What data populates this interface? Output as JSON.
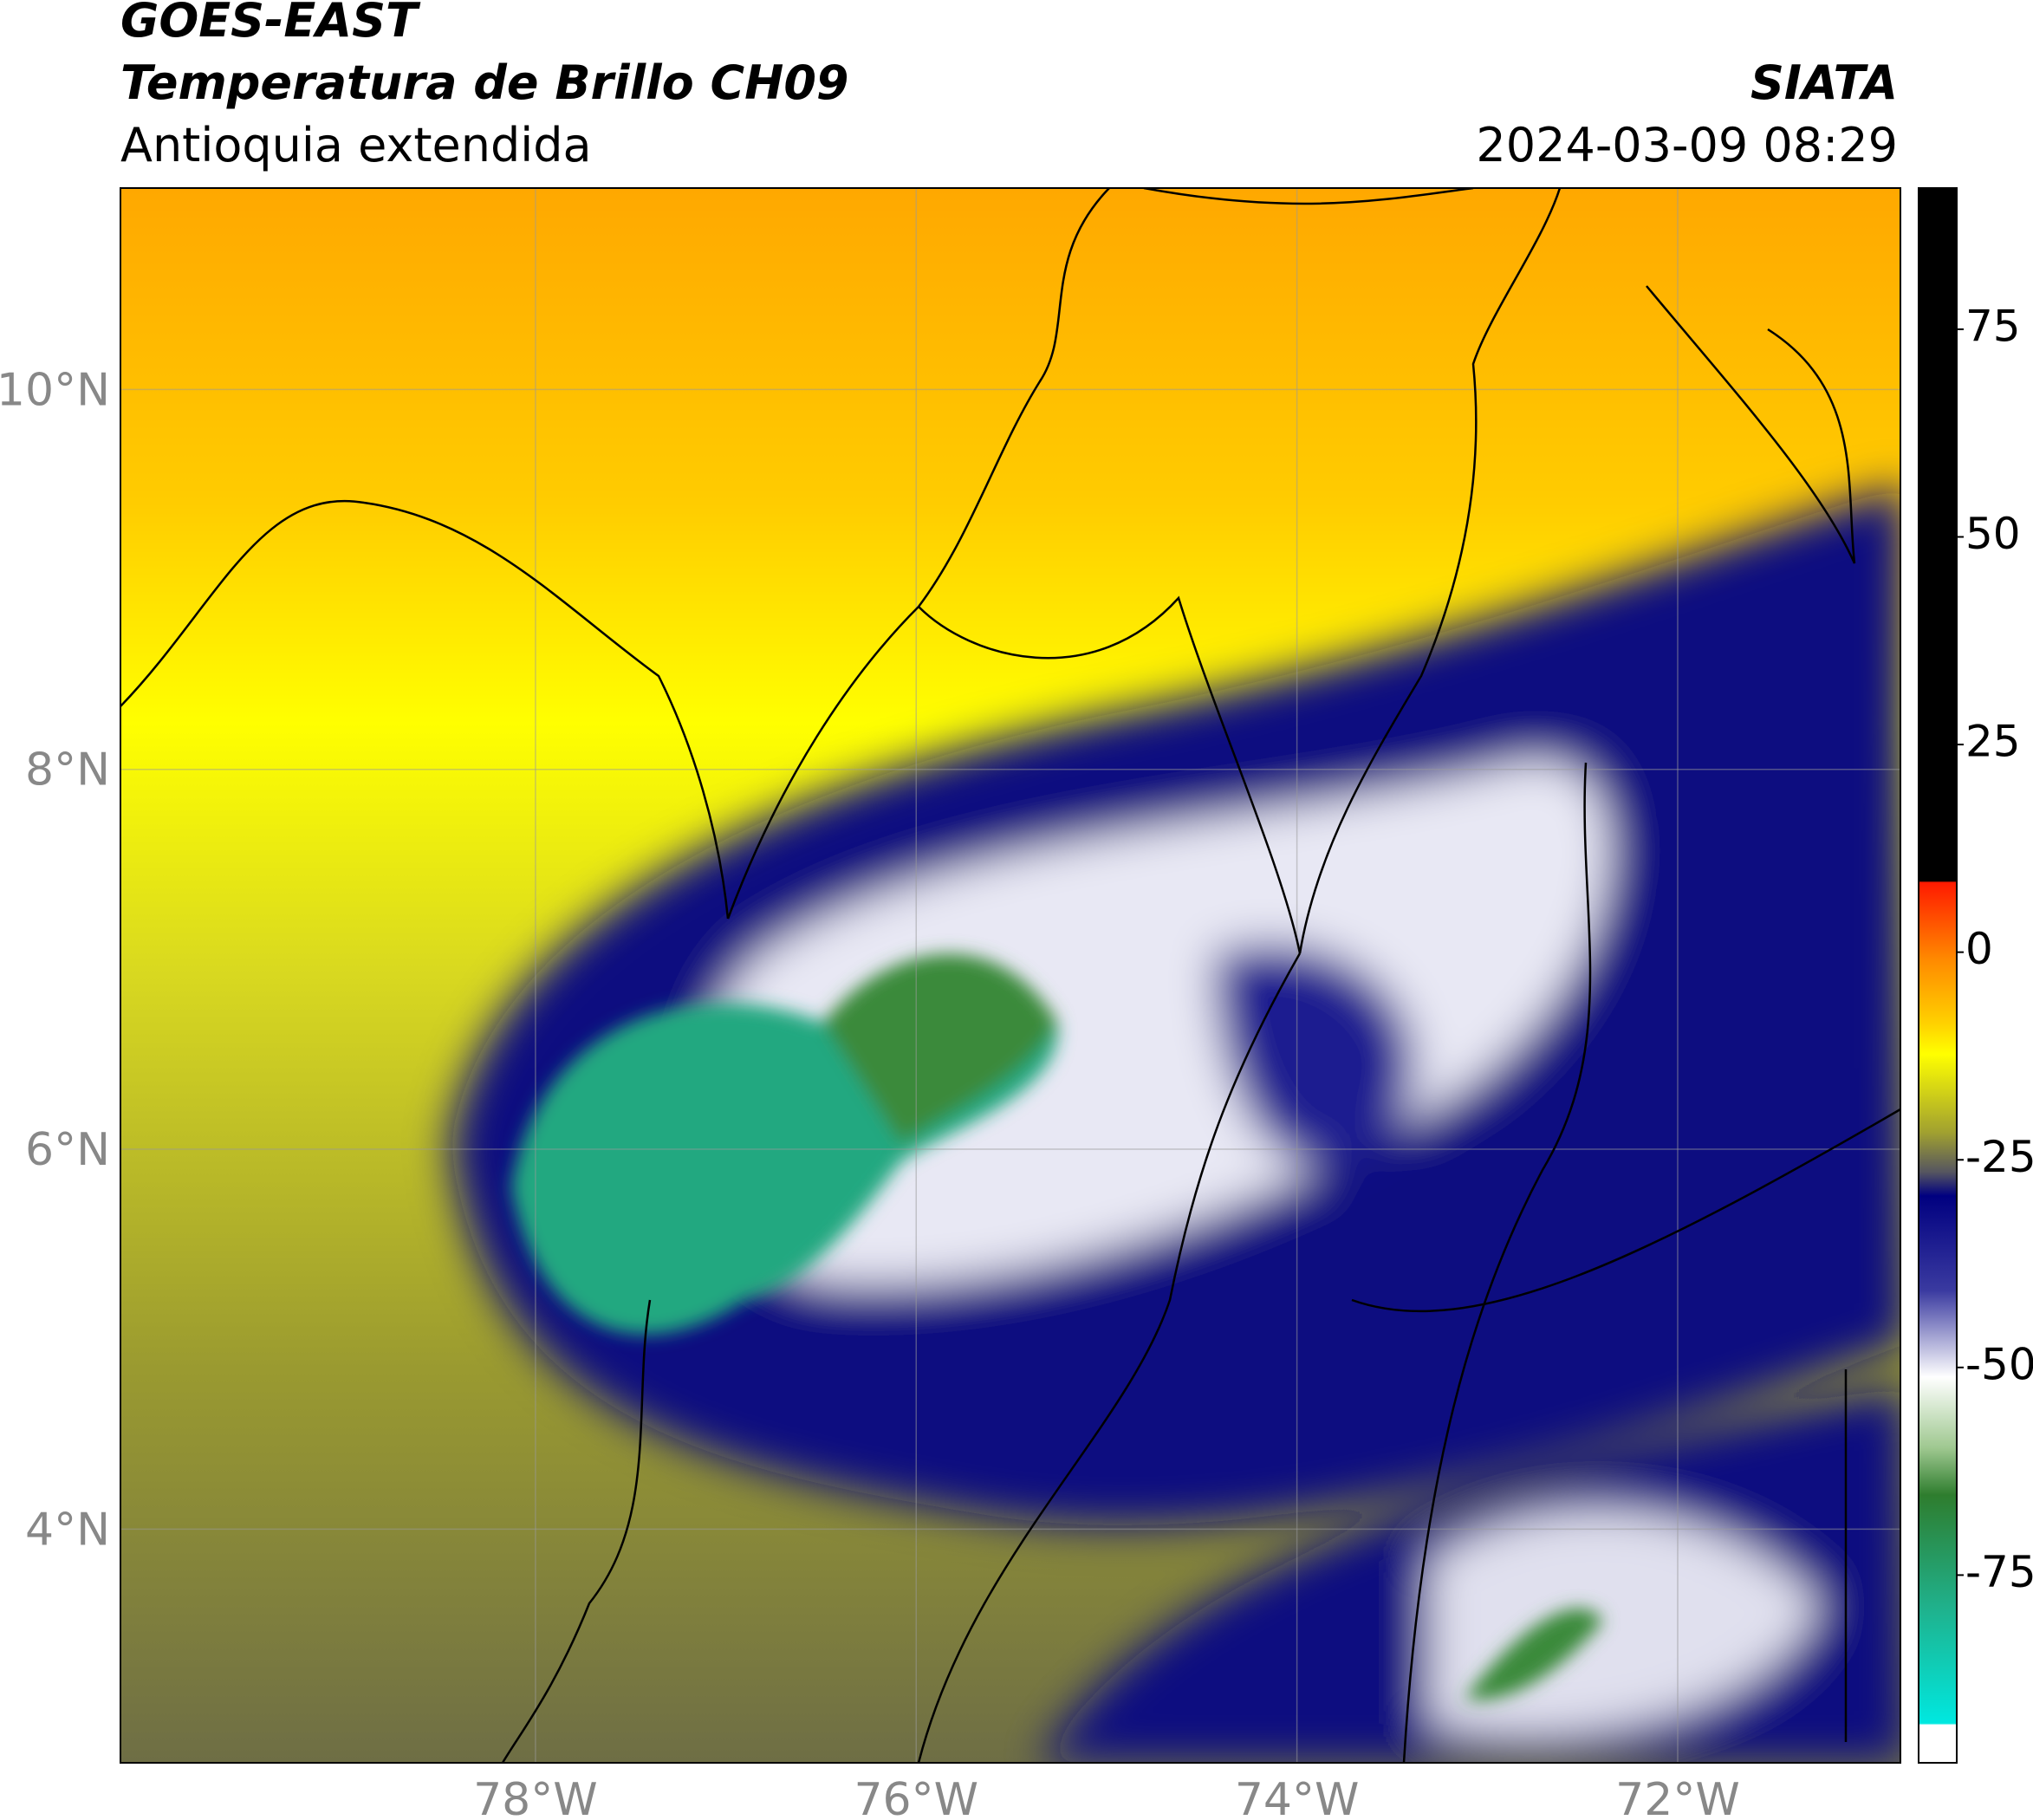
{
  "header": {
    "title": "GOES-EAST",
    "subtitle": "Temperatura de Brillo CH09",
    "region": "Antioquia extendida",
    "agency": "SIATA",
    "datetime": "2024-03-09 08:29"
  },
  "chart_data": {
    "type": "map",
    "xlim": [
      -80.18,
      -70.83
    ],
    "ylim": [
      2.77,
      11.06
    ],
    "xticks": [
      {
        "value": -78,
        "label": "78°W"
      },
      {
        "value": -76,
        "label": "76°W"
      },
      {
        "value": -74,
        "label": "74°W"
      },
      {
        "value": -72,
        "label": "72°W"
      }
    ],
    "yticks": [
      {
        "value": 4,
        "label": "4°N"
      },
      {
        "value": 6,
        "label": "6°N"
      },
      {
        "value": 8,
        "label": "8°N"
      },
      {
        "value": 10,
        "label": "10°N"
      }
    ],
    "grid": true,
    "colorbar": {
      "lim": [
        -97.6,
        92
      ],
      "ticks": [
        -75,
        -50,
        -25,
        0,
        25,
        50,
        75
      ]
    }
  }
}
